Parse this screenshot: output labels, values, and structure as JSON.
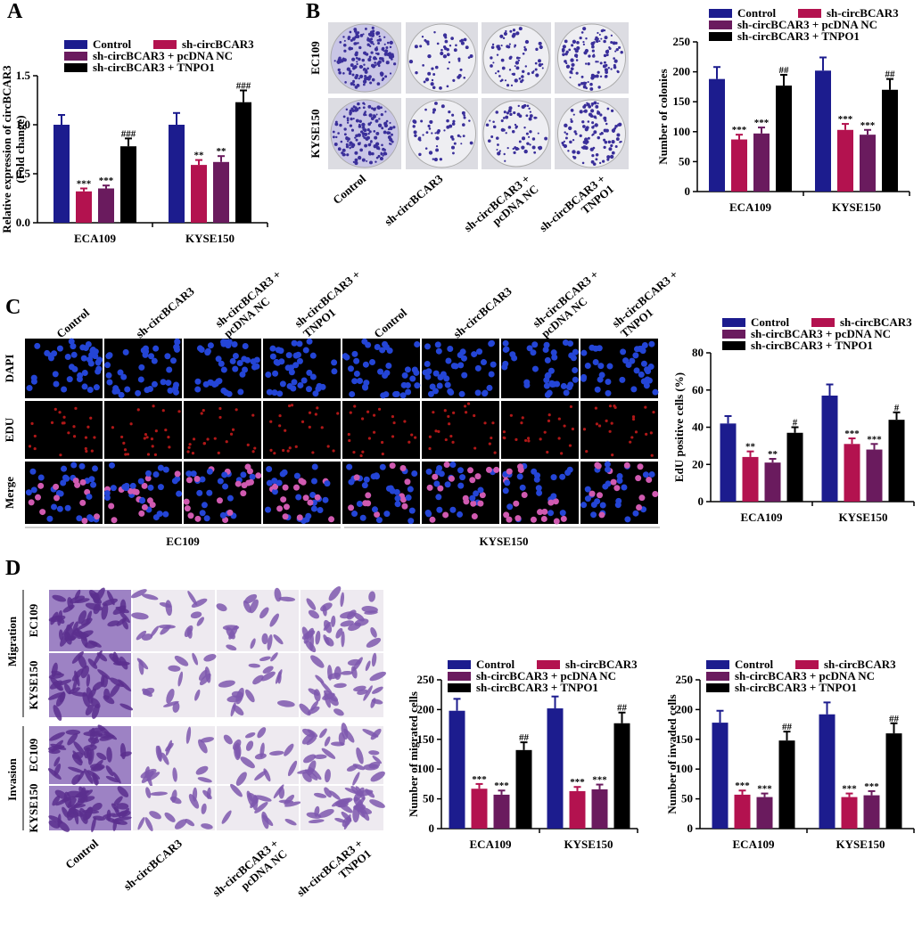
{
  "panel_labels": [
    "A",
    "B",
    "C",
    "D"
  ],
  "colony_images": {
    "row_labels": [
      "EC109",
      "KYSE150"
    ],
    "column_labels": [
      [
        "Control"
      ],
      [
        "sh-circBCAR3"
      ],
      [
        "sh-circBCAR3 +",
        "pcDNA NC"
      ],
      [
        "sh-circBCAR3 +",
        "TNPO1"
      ]
    ]
  },
  "edu_images": {
    "column_labels": [
      [
        "Control"
      ],
      [
        "sh-circBCAR3"
      ],
      [
        "sh-circBCAR3 +",
        "pcDNA NC"
      ],
      [
        "sh-circBCAR3 +",
        "TNPO1"
      ],
      [
        "Control"
      ],
      [
        "sh-circBCAR3"
      ],
      [
        "sh-circBCAR3 +",
        "pcDNA NC"
      ],
      [
        "sh-circBCAR3 +",
        "TNPO1"
      ]
    ],
    "row_labels": [
      "DAPI",
      "EDU",
      "Merge"
    ],
    "group_labels": [
      "EC109",
      "KYSE150"
    ]
  },
  "transwell_images": {
    "assay_labels": [
      "Migration",
      "Invasion"
    ],
    "row_labels": [
      "EC109",
      "KYSE150",
      "EC109",
      "KYSE150"
    ],
    "column_labels": [
      [
        "Control"
      ],
      [
        "sh-circBCAR3"
      ],
      [
        "sh-circBCAR3 +",
        "pcDNA NC"
      ],
      [
        "sh-circBCAR3 +",
        "TNPO1"
      ]
    ]
  },
  "chart_data": [
    {
      "type": "bar",
      "ylabel": [
        "Relative expression of circBCAR3",
        "(Fold change)"
      ],
      "categories": [
        "ECA109",
        "KYSE150"
      ],
      "series": [
        {
          "name": "Control",
          "color": "#1c1c8e",
          "values": [
            1.0,
            1.0
          ],
          "errors": [
            0.1,
            0.12
          ]
        },
        {
          "name": "sh-circBCAR3",
          "color": "#b3124f",
          "values": [
            0.32,
            0.59
          ],
          "errors": [
            0.03,
            0.05
          ],
          "significance": [
            "***",
            "**"
          ]
        },
        {
          "name": "sh-circBCAR3 + pcDNA NC",
          "color": "#6a1b5e",
          "values": [
            0.35,
            0.62
          ],
          "errors": [
            0.03,
            0.06
          ],
          "significance": [
            "***",
            "**"
          ]
        },
        {
          "name": "sh-circBCAR3 + TNPO1",
          "color": "#000000",
          "values": [
            0.78,
            1.23
          ],
          "errors": [
            0.08,
            0.12
          ],
          "significance": [
            "###",
            "###"
          ]
        }
      ],
      "ylim": [
        0,
        1.5
      ],
      "yticks": [
        {
          "value": 0,
          "label": "0.0"
        },
        {
          "value": 0.5,
          "label": "0.5"
        },
        {
          "value": 1,
          "label": "1.0"
        },
        {
          "value": 1.5,
          "label": "1.5"
        }
      ]
    },
    {
      "type": "bar",
      "ylabel": [
        "Number of colonies"
      ],
      "categories": [
        "ECA109",
        "KYSE150"
      ],
      "series": [
        {
          "name": "Control",
          "color": "#1c1c8e",
          "values": [
            188,
            202
          ],
          "errors": [
            20,
            22
          ]
        },
        {
          "name": "sh-circBCAR3",
          "color": "#b3124f",
          "values": [
            87,
            103
          ],
          "errors": [
            8,
            10
          ],
          "significance": [
            "***",
            "***"
          ]
        },
        {
          "name": "sh-circBCAR3 + pcDNA NC",
          "color": "#6a1b5e",
          "values": [
            97,
            95
          ],
          "errors": [
            10,
            8
          ],
          "significance": [
            "***",
            "***"
          ]
        },
        {
          "name": "sh-circBCAR3 + TNPO1",
          "color": "#000000",
          "values": [
            177,
            170
          ],
          "errors": [
            18,
            18
          ],
          "significance": [
            "##",
            "##"
          ]
        }
      ],
      "ylim": [
        0,
        250
      ],
      "yticks": [
        0,
        50,
        100,
        150,
        200,
        250
      ]
    },
    {
      "type": "bar",
      "ylabel": [
        "EdU positive cells (%)"
      ],
      "categories": [
        "ECA109",
        "KYSE150"
      ],
      "series": [
        {
          "name": "Control",
          "color": "#1c1c8e",
          "values": [
            42,
            57
          ],
          "errors": [
            4,
            6
          ]
        },
        {
          "name": "sh-circBCAR3",
          "color": "#b3124f",
          "values": [
            24,
            31
          ],
          "errors": [
            3,
            3
          ],
          "significance": [
            "**",
            "***"
          ]
        },
        {
          "name": "sh-circBCAR3 + pcDNA NC",
          "color": "#6a1b5e",
          "values": [
            21,
            28
          ],
          "errors": [
            2,
            3
          ],
          "significance": [
            "**",
            "***"
          ]
        },
        {
          "name": "sh-circBCAR3 + TNPO1",
          "color": "#000000",
          "values": [
            37,
            44
          ],
          "errors": [
            3,
            4
          ],
          "significance": [
            "#",
            "#"
          ]
        }
      ],
      "ylim": [
        0,
        80
      ],
      "yticks": [
        0,
        20,
        40,
        60,
        80
      ]
    },
    {
      "type": "bar",
      "ylabel": [
        "Number of migrated cells"
      ],
      "categories": [
        "ECA109",
        "KYSE150"
      ],
      "series": [
        {
          "name": "Control",
          "color": "#1c1c8e",
          "values": [
            198,
            202
          ],
          "errors": [
            20,
            20
          ]
        },
        {
          "name": "sh-circBCAR3",
          "color": "#b3124f",
          "values": [
            67,
            63
          ],
          "errors": [
            8,
            7
          ],
          "significance": [
            "***",
            "***"
          ]
        },
        {
          "name": "sh-circBCAR3 + pcDNA NC",
          "color": "#6a1b5e",
          "values": [
            57,
            66
          ],
          "errors": [
            7,
            8
          ],
          "significance": [
            "***",
            "***"
          ]
        },
        {
          "name": "sh-circBCAR3 + TNPO1",
          "color": "#000000",
          "values": [
            132,
            177
          ],
          "errors": [
            13,
            18
          ],
          "significance": [
            "##",
            "##"
          ]
        }
      ],
      "ylim": [
        0,
        250
      ],
      "yticks": [
        0,
        50,
        100,
        150,
        200,
        250
      ]
    },
    {
      "type": "bar",
      "ylabel": [
        "Number of invaded cells"
      ],
      "categories": [
        "ECA109",
        "KYSE150"
      ],
      "series": [
        {
          "name": "Control",
          "color": "#1c1c8e",
          "values": [
            178,
            192
          ],
          "errors": [
            20,
            20
          ]
        },
        {
          "name": "sh-circBCAR3",
          "color": "#b3124f",
          "values": [
            57,
            53
          ],
          "errors": [
            7,
            6
          ],
          "significance": [
            "***",
            "***"
          ]
        },
        {
          "name": "sh-circBCAR3 + pcDNA NC",
          "color": "#6a1b5e",
          "values": [
            53,
            56
          ],
          "errors": [
            6,
            7
          ],
          "significance": [
            "***",
            "***"
          ]
        },
        {
          "name": "sh-circBCAR3 + TNPO1",
          "color": "#000000",
          "values": [
            148,
            160
          ],
          "errors": [
            15,
            17
          ],
          "significance": [
            "##",
            "##"
          ]
        }
      ],
      "ylim": [
        0,
        250
      ],
      "yticks": [
        0,
        50,
        100,
        150,
        200,
        250
      ]
    }
  ]
}
